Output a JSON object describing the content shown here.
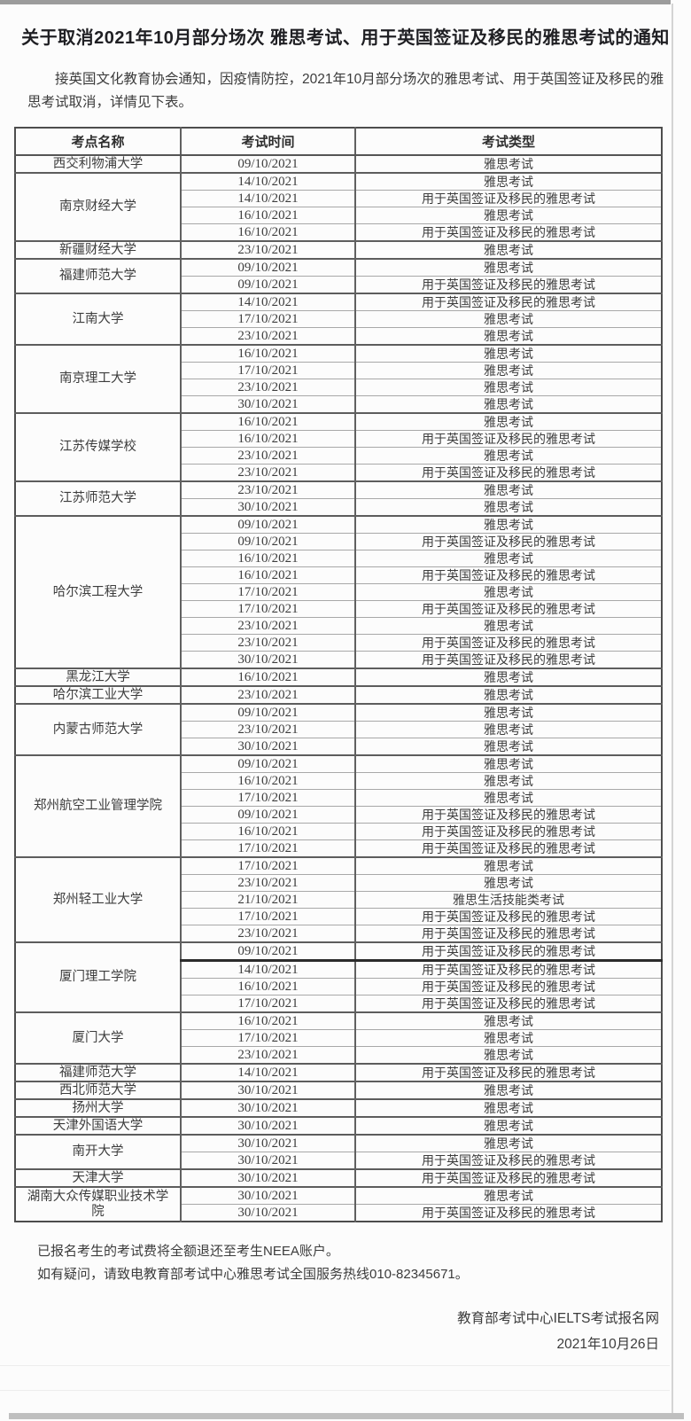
{
  "page": {
    "title": "关于取消2021年10月部分场次 雅思考试、用于英国签证及移民的雅思考试的通知",
    "intro": "接英国文化教育协会通知，因疫情防控，2021年10月部分场次的雅思考试、用于英国签证及移民的雅思考试取消，详情见下表。",
    "notes": [
      "已报名考生的考试费将全额退还至考生NEEA账户。",
      "如有疑问，请致电教育部考试中心雅思考试全国服务热线010-82345671。"
    ],
    "signature_org": "教育部考试中心IELTS考试报名网",
    "signature_date": "2021年10月26日"
  },
  "colors": {
    "border_dark": "#5d5d5d",
    "border_light": "#a8a8a8",
    "text": "#3c3c3c",
    "scan_band": "#9c9c9c"
  },
  "table": {
    "headers": [
      "考点名称",
      "考试时间",
      "考试类型"
    ],
    "groups": [
      {
        "name": "西交利物浦大学",
        "rows": [
          {
            "date": "09/10/2021",
            "type": "雅思考试"
          }
        ]
      },
      {
        "name": "南京财经大学",
        "rows": [
          {
            "date": "14/10/2021",
            "type": "雅思考试"
          },
          {
            "date": "14/10/2021",
            "type": "用于英国签证及移民的雅思考试"
          },
          {
            "date": "16/10/2021",
            "type": "雅思考试"
          },
          {
            "date": "16/10/2021",
            "type": "用于英国签证及移民的雅思考试"
          }
        ]
      },
      {
        "name": "新疆财经大学",
        "rows": [
          {
            "date": "23/10/2021",
            "type": "雅思考试"
          }
        ]
      },
      {
        "name": "福建师范大学",
        "rows": [
          {
            "date": "09/10/2021",
            "type": "雅思考试"
          },
          {
            "date": "09/10/2021",
            "type": "用于英国签证及移民的雅思考试"
          }
        ]
      },
      {
        "name": "江南大学",
        "rows": [
          {
            "date": "14/10/2021",
            "type": "用于英国签证及移民的雅思考试"
          },
          {
            "date": "17/10/2021",
            "type": "雅思考试"
          },
          {
            "date": "23/10/2021",
            "type": "雅思考试"
          }
        ]
      },
      {
        "name": "南京理工大学",
        "rows": [
          {
            "date": "16/10/2021",
            "type": "雅思考试"
          },
          {
            "date": "17/10/2021",
            "type": "雅思考试"
          },
          {
            "date": "23/10/2021",
            "type": "雅思考试"
          },
          {
            "date": "30/10/2021",
            "type": "雅思考试"
          }
        ]
      },
      {
        "name": "江苏传媒学校",
        "rows": [
          {
            "date": "16/10/2021",
            "type": "雅思考试"
          },
          {
            "date": "16/10/2021",
            "type": "用于英国签证及移民的雅思考试"
          },
          {
            "date": "23/10/2021",
            "type": "雅思考试"
          },
          {
            "date": "23/10/2021",
            "type": "用于英国签证及移民的雅思考试"
          }
        ]
      },
      {
        "name": "江苏师范大学",
        "rows": [
          {
            "date": "23/10/2021",
            "type": "雅思考试"
          },
          {
            "date": "30/10/2021",
            "type": "雅思考试"
          }
        ]
      },
      {
        "name": "哈尔滨工程大学",
        "rows": [
          {
            "date": "09/10/2021",
            "type": "雅思考试"
          },
          {
            "date": "09/10/2021",
            "type": "用于英国签证及移民的雅思考试"
          },
          {
            "date": "16/10/2021",
            "type": "雅思考试"
          },
          {
            "date": "16/10/2021",
            "type": "用于英国签证及移民的雅思考试"
          },
          {
            "date": "17/10/2021",
            "type": "雅思考试"
          },
          {
            "date": "17/10/2021",
            "type": "用于英国签证及移民的雅思考试"
          },
          {
            "date": "23/10/2021",
            "type": "雅思考试"
          },
          {
            "date": "23/10/2021",
            "type": "用于英国签证及移民的雅思考试"
          },
          {
            "date": "30/10/2021",
            "type": "用于英国签证及移民的雅思考试"
          }
        ]
      },
      {
        "name": "黑龙江大学",
        "rows": [
          {
            "date": "16/10/2021",
            "type": "雅思考试"
          }
        ]
      },
      {
        "name": "哈尔滨工业大学",
        "rows": [
          {
            "date": "23/10/2021",
            "type": "雅思考试"
          }
        ]
      },
      {
        "name": "内蒙古师范大学",
        "rows": [
          {
            "date": "09/10/2021",
            "type": "雅思考试"
          },
          {
            "date": "23/10/2021",
            "type": "雅思考试"
          },
          {
            "date": "30/10/2021",
            "type": "雅思考试"
          }
        ]
      },
      {
        "name": "郑州航空工业管理学院",
        "rows": [
          {
            "date": "09/10/2021",
            "type": "雅思考试"
          },
          {
            "date": "16/10/2021",
            "type": "雅思考试"
          },
          {
            "date": "17/10/2021",
            "type": "雅思考试"
          },
          {
            "date": "09/10/2021",
            "type": "用于英国签证及移民的雅思考试"
          },
          {
            "date": "16/10/2021",
            "type": "用于英国签证及移民的雅思考试"
          },
          {
            "date": "17/10/2021",
            "type": "用于英国签证及移民的雅思考试"
          }
        ]
      },
      {
        "name": "郑州轻工业大学",
        "rows": [
          {
            "date": "17/10/2021",
            "type": "雅思考试"
          },
          {
            "date": "23/10/2021",
            "type": "雅思考试"
          },
          {
            "date": "21/10/2021",
            "type": "雅思生活技能类考试"
          },
          {
            "date": "17/10/2021",
            "type": "用于英国签证及移民的雅思考试"
          },
          {
            "date": "23/10/2021",
            "type": "用于英国签证及移民的雅思考试"
          }
        ]
      },
      {
        "name": "厦门理工学院",
        "rows": [
          {
            "date": "09/10/2021",
            "type": "用于英国签证及移民的雅思考试",
            "underline": true
          },
          {
            "date": "14/10/2021",
            "type": "用于英国签证及移民的雅思考试"
          },
          {
            "date": "16/10/2021",
            "type": "用于英国签证及移民的雅思考试"
          },
          {
            "date": "17/10/2021",
            "type": "用于英国签证及移民的雅思考试"
          }
        ]
      },
      {
        "name": "厦门大学",
        "rows": [
          {
            "date": "16/10/2021",
            "type": "雅思考试"
          },
          {
            "date": "17/10/2021",
            "type": "雅思考试"
          },
          {
            "date": "23/10/2021",
            "type": "雅思考试"
          }
        ]
      },
      {
        "name": "福建师范大学",
        "rows": [
          {
            "date": "14/10/2021",
            "type": "用于英国签证及移民的雅思考试"
          }
        ]
      },
      {
        "name": "西北师范大学",
        "rows": [
          {
            "date": "30/10/2021",
            "type": "雅思考试"
          }
        ]
      },
      {
        "name": "扬州大学",
        "rows": [
          {
            "date": "30/10/2021",
            "type": "雅思考试"
          }
        ]
      },
      {
        "name": "天津外国语大学",
        "rows": [
          {
            "date": "30/10/2021",
            "type": "雅思考试"
          }
        ]
      },
      {
        "name": "南开大学",
        "rows": [
          {
            "date": "30/10/2021",
            "type": "雅思考试"
          },
          {
            "date": "30/10/2021",
            "type": "用于英国签证及移民的雅思考试"
          }
        ]
      },
      {
        "name": "天津大学",
        "rows": [
          {
            "date": "30/10/2021",
            "type": "用于英国签证及移民的雅思考试"
          }
        ]
      },
      {
        "name": "湖南大众传媒职业技术学院",
        "rows": [
          {
            "date": "30/10/2021",
            "type": "雅思考试"
          },
          {
            "date": "30/10/2021",
            "type": "用于英国签证及移民的雅思考试"
          }
        ]
      }
    ]
  }
}
